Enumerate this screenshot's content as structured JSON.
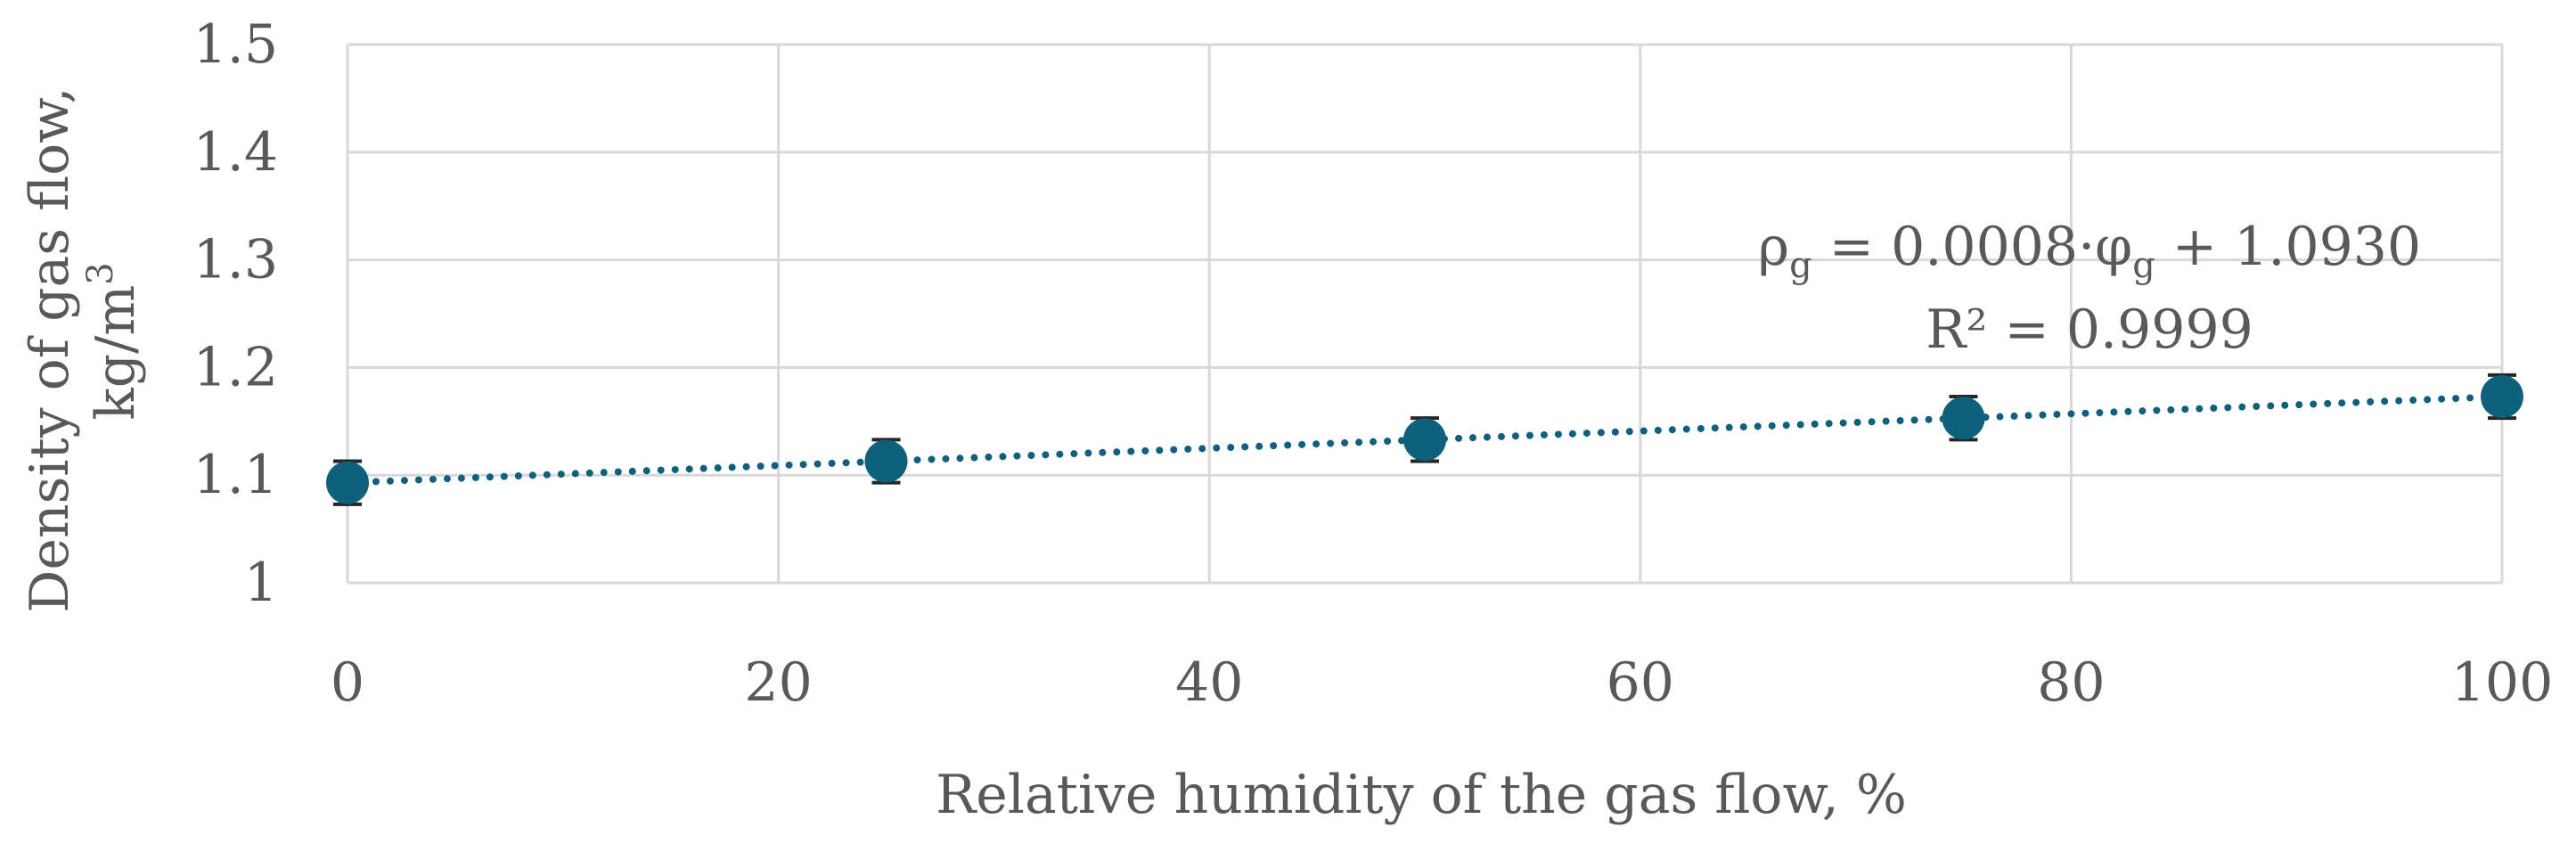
{
  "chart_data": {
    "type": "scatter",
    "title": "",
    "xlabel": "Relative humidity of the gas flow, %",
    "ylabel_line1": "Density of gas flow,",
    "ylabel_line2_base": "kg/m",
    "ylabel_line2_sup": "3",
    "xlim": [
      0,
      100
    ],
    "ylim": [
      1.0,
      1.5
    ],
    "x_ticks": [
      0,
      20,
      40,
      60,
      80,
      100
    ],
    "x_tick_labels": [
      "0",
      "20",
      "40",
      "60",
      "80",
      "100"
    ],
    "y_ticks": [
      1.0,
      1.1,
      1.2,
      1.3,
      1.4,
      1.5
    ],
    "y_tick_labels": [
      "1",
      "1.1",
      "1.2",
      "1.3",
      "1.4",
      "1.5"
    ],
    "grid": true,
    "series": [
      {
        "x": [
          0,
          25,
          50,
          75,
          100
        ],
        "y": [
          1.093,
          1.113,
          1.133,
          1.153,
          1.173
        ],
        "error": [
          0.02,
          0.02,
          0.02,
          0.02,
          0.02
        ],
        "color": "#0f607c"
      }
    ],
    "trendline": {
      "type": "linear",
      "slope": 0.0008,
      "intercept": 1.093,
      "style": "dotted",
      "color": "#0f607c"
    },
    "annotation": {
      "eq_rho": "ρ",
      "eq_sub": "g",
      "eq_mid": " = 0.0008·φ",
      "eq_sub2": "g",
      "eq_end": " + 1.0930",
      "r2": "R² = 0.9999"
    }
  }
}
